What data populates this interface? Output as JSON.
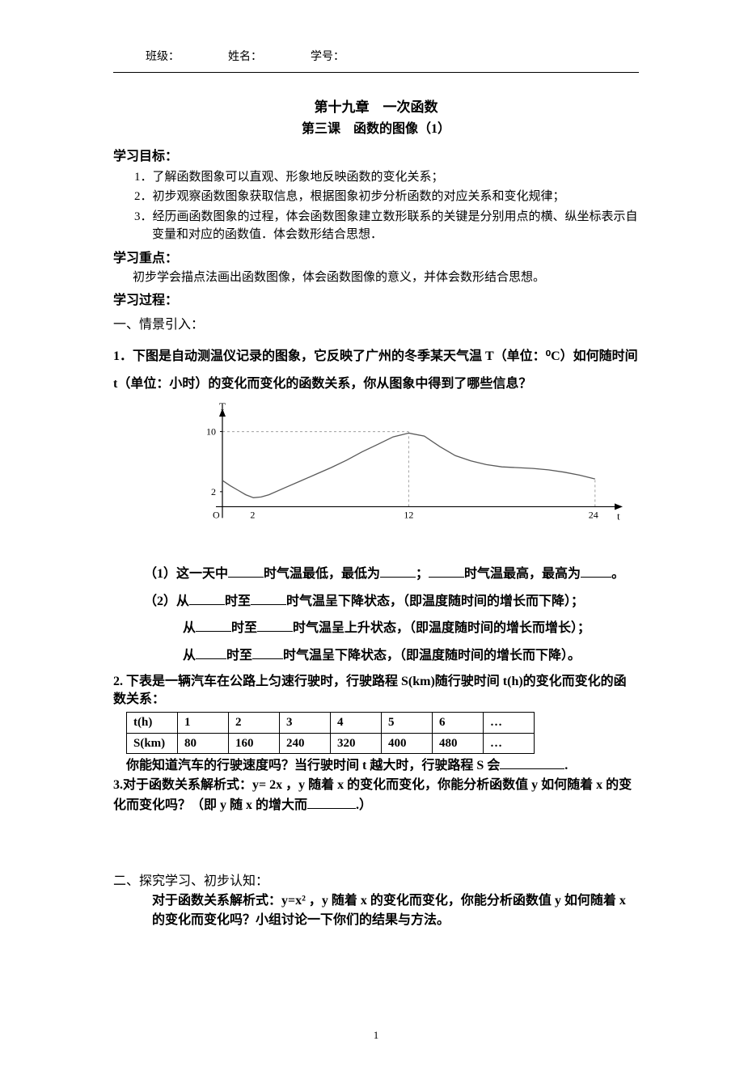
{
  "header": {
    "class_label": "班级：",
    "name_label": "姓名：",
    "id_label": "学号："
  },
  "title": {
    "chapter": "第十九章　一次函数",
    "lesson": "第三课　函数的图像（1）"
  },
  "goals": {
    "label": "学习目标：",
    "items": [
      "1．了解函数图象可以直观、形象地反映函数的变化关系；",
      "2．初步观察函数图象获取信息，根据图象初步分析函数的对应关系和变化规律；",
      "3．经历画函数图象的过程，体会函数图象建立数形联系的关键是分别用点的横、纵坐标表示自变量和对应的函数值．体会数形结合思想．"
    ]
  },
  "emphasis": {
    "label": "学习重点：",
    "text": "初步学会描点法画出函数图像，体会函数图像的意义，并体会数形结合思想。"
  },
  "process_label": "学习过程：",
  "section1_label": "一、情景引入：",
  "q1": {
    "intro": "1．下图是自动测温仪记录的图象，它反映了广州的冬季某天气温 T（单位：⁰C）如何随时间 t（单位：小时）的变化而变化的函数关系，你从图象中得到了哪些信息？",
    "sub1_prefix": "（1）这一天中",
    "sub1_mid1": "时气温最低，最低为",
    "sub1_mid2": "；",
    "sub1_mid3": "时气温最高，最高为",
    "sub1_end": "。",
    "sub2_prefix": "（2）从",
    "sub2_mid1": "时至",
    "sub2_mid2": "时气温呈下降状态，（即温度随时间的增长而下降）；",
    "sub2_line2_prefix": "从",
    "sub2_line2_mid": "时至",
    "sub2_line2_end": "时气温呈上升状态，（即温度随时间的增长而增长）；",
    "sub2_line3_prefix": "从",
    "sub2_line3_mid": "时至",
    "sub2_line3_end": "时气温呈下降状态，（即温度随时间的增长而下降）。"
  },
  "chart": {
    "y_label": "T",
    "x_label": "t",
    "origin": "O",
    "y_ticks": [
      2,
      10
    ],
    "x_ticks": [
      2,
      12,
      24
    ],
    "curve_color": "#595959",
    "axis_color": "#000000",
    "dash_color": "#a0a0a0",
    "background": "#ffffff",
    "y_range": [
      -2,
      12
    ],
    "x_range": [
      0,
      25
    ],
    "curve_points": [
      [
        0,
        3.5
      ],
      [
        0.5,
        2.8
      ],
      [
        1,
        2.2
      ],
      [
        1.5,
        1.6
      ],
      [
        2,
        1.2
      ],
      [
        2.5,
        1.3
      ],
      [
        3,
        1.6
      ],
      [
        4,
        2.5
      ],
      [
        5,
        3.4
      ],
      [
        6,
        4.3
      ],
      [
        7,
        5.2
      ],
      [
        8,
        6.2
      ],
      [
        9,
        7.3
      ],
      [
        10,
        8.3
      ],
      [
        11,
        9.3
      ],
      [
        12,
        9.8
      ],
      [
        13,
        9.4
      ],
      [
        14,
        8.0
      ],
      [
        15,
        6.8
      ],
      [
        16,
        6.1
      ],
      [
        17,
        5.6
      ],
      [
        18,
        5.3
      ],
      [
        19,
        5.2
      ],
      [
        20,
        5.1
      ],
      [
        21,
        4.9
      ],
      [
        22,
        4.6
      ],
      [
        23,
        4.2
      ],
      [
        24,
        3.7
      ]
    ]
  },
  "q2": {
    "intro": "2.  下表是一辆汽车在公路上匀速行驶时，行驶路程 S(km)随行驶时间 t(h)的变化而变化的函数关系：",
    "table": {
      "row1_label": "t(h)",
      "row1": [
        "1",
        "2",
        "3",
        "4",
        "5",
        "6",
        "…"
      ],
      "row2_label": "S(km)",
      "row2": [
        "80",
        "160",
        "240",
        "320",
        "400",
        "480",
        "…"
      ]
    },
    "follow": "你能知道汽车的行驶速度吗？当行驶时间 t 越大时，行驶路程 S 会",
    "follow_end": "."
  },
  "q3": {
    "text_a": "3.对于函数关系解析式：y= 2x ，y 随着 x 的变化而变化，你能分析函数值 y 如何随着 x 的变化而变化吗？（即 y 随 x 的增大而",
    "text_b": ".）"
  },
  "section2": {
    "label": "二、探究学习、初步认知：",
    "body": "对于函数关系解析式：y=x² ，y 随着 x 的变化而变化，你能分析函数值 y 如何随着 x 的变化而变化吗？小组讨论一下你们的结果与方法。"
  },
  "page_number": "1"
}
